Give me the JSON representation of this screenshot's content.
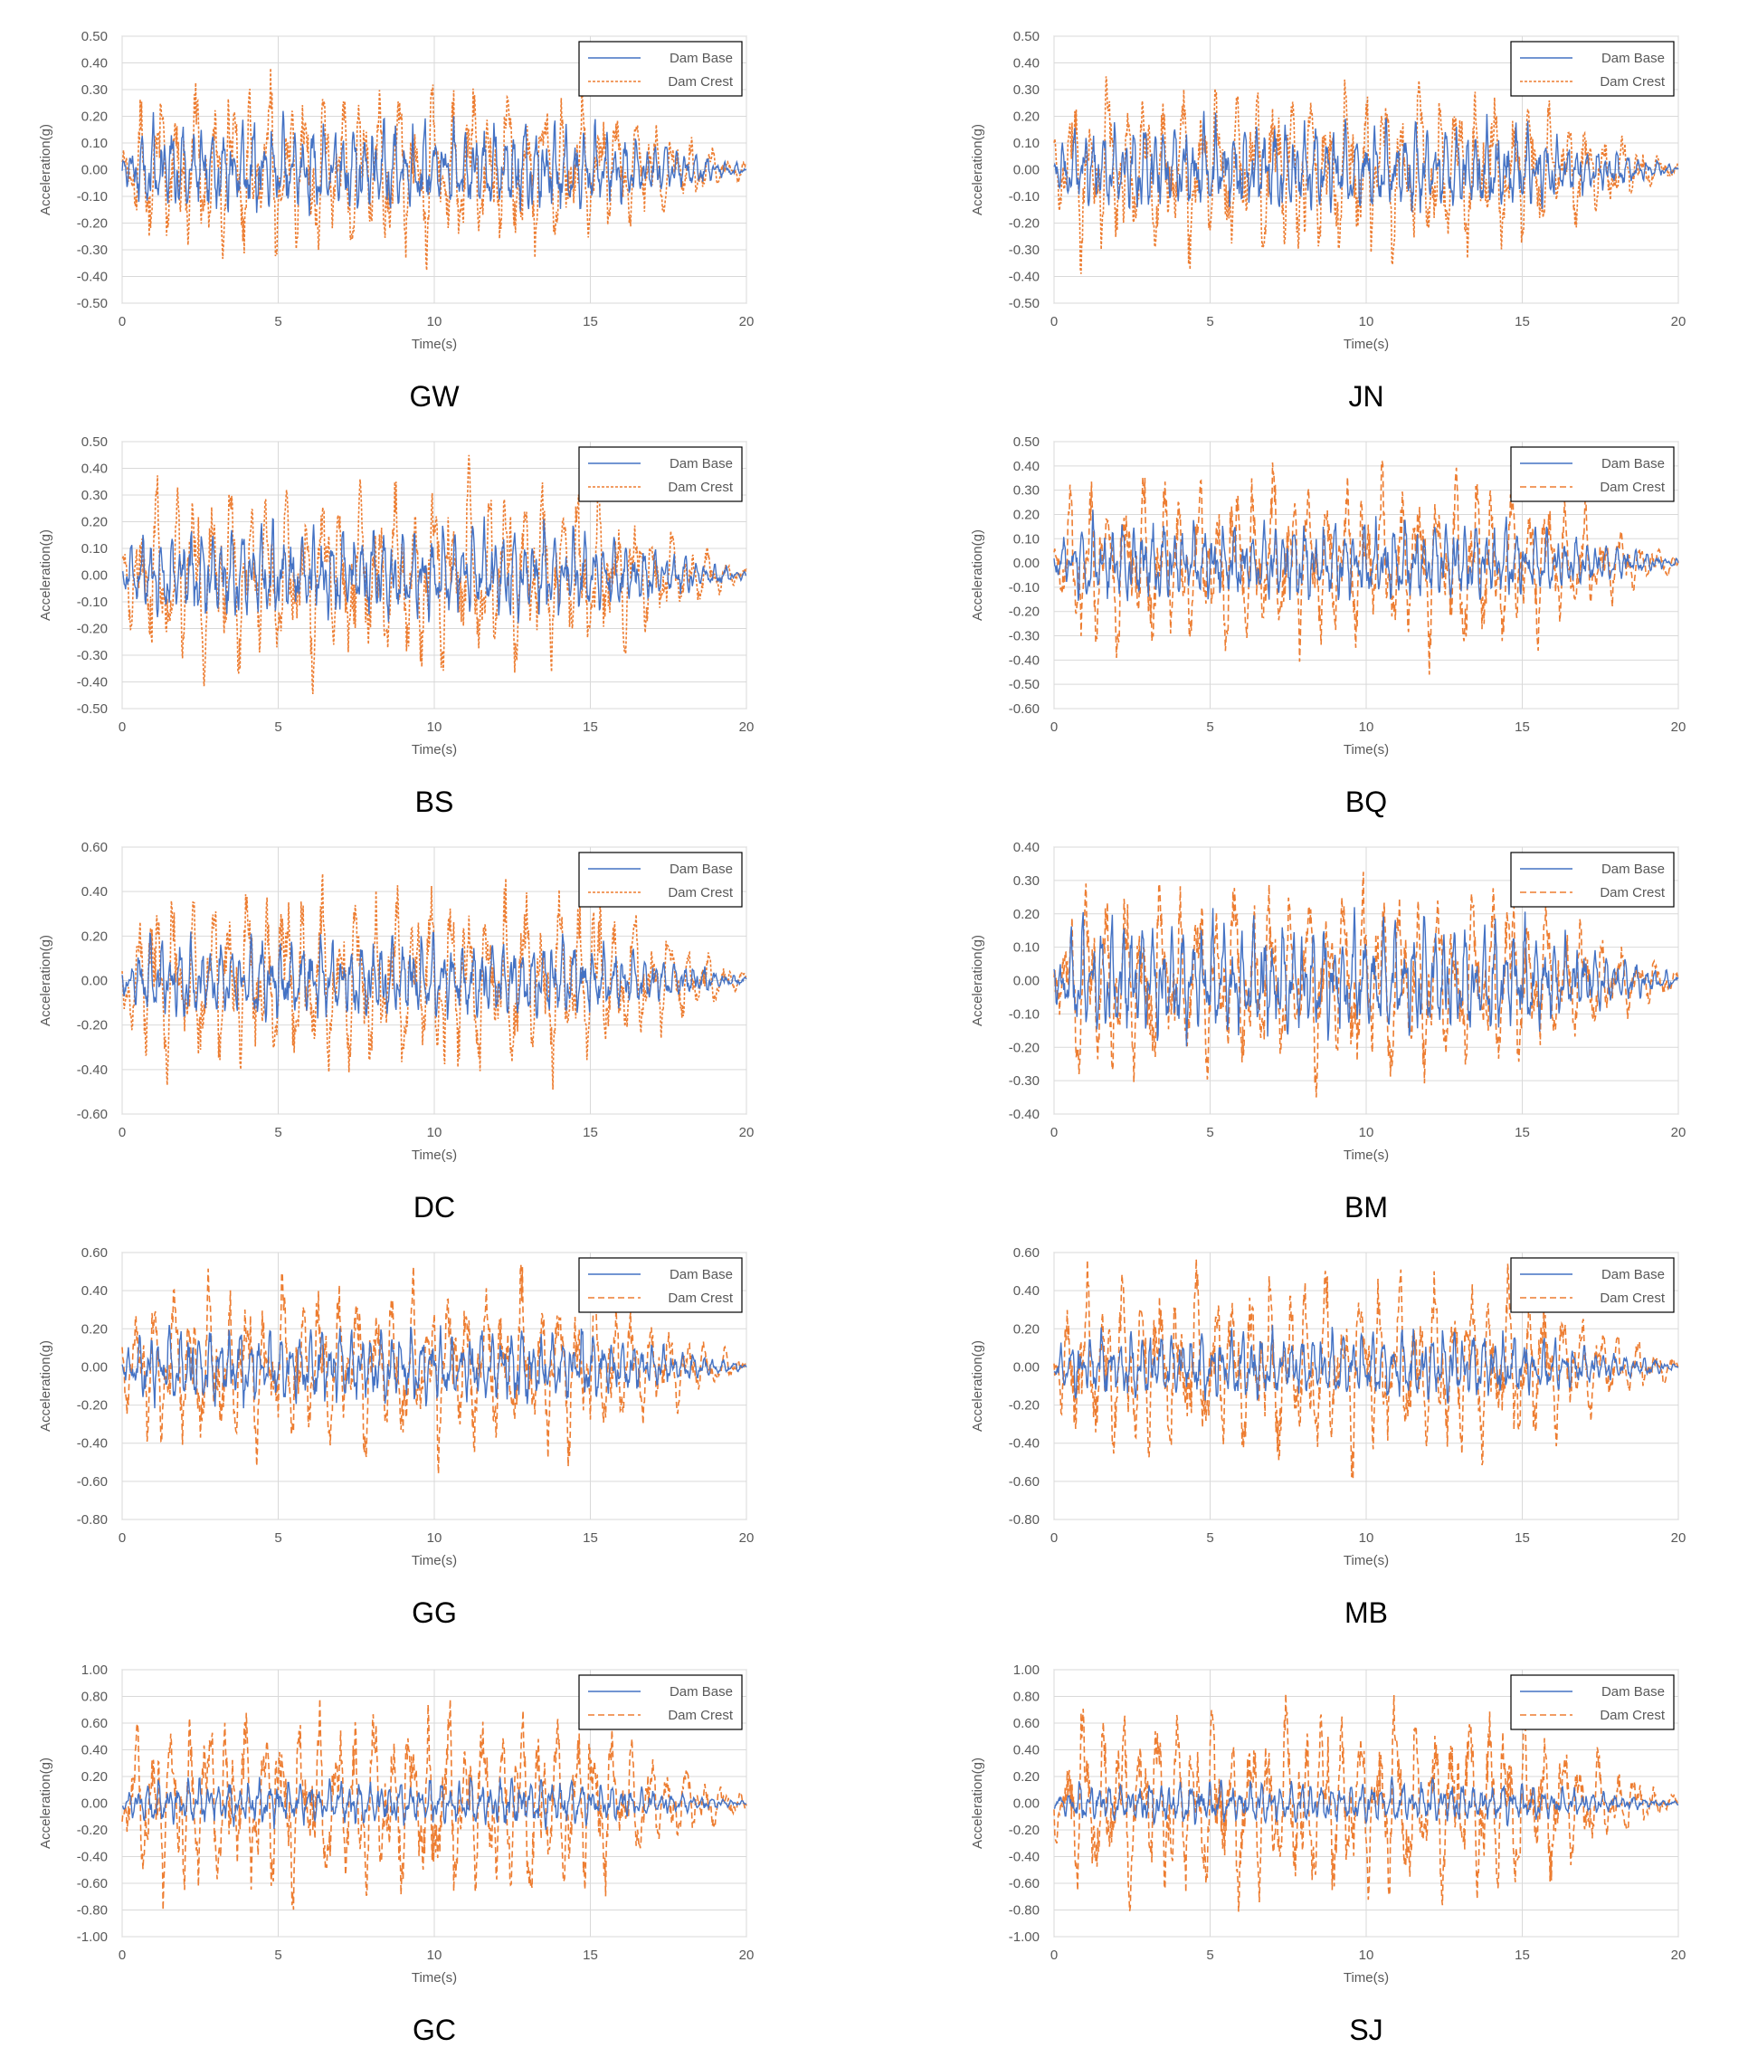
{
  "colors": {
    "base": "#4472C4",
    "crest": "#ED7D31",
    "grid": "#d9d9d9",
    "axis": "#bfbfbf",
    "text": "#595959"
  },
  "chart_data": [
    {
      "id": "GW",
      "type": "line",
      "caption": "GW",
      "xlabel": "Time(s)",
      "ylabel": "Acceleration(g)",
      "xlim": [
        0,
        20
      ],
      "xticks": [
        "0",
        "5",
        "10",
        "15",
        "20"
      ],
      "ylim": [
        -0.5,
        0.5
      ],
      "yticks": [
        "0.50",
        "0.40",
        "0.30",
        "0.20",
        "0.10",
        "0.00",
        "-0.10",
        "-0.20",
        "-0.30",
        "-0.40",
        "-0.50"
      ],
      "crest_dash": "dot",
      "series": [
        {
          "name": "Dam Base",
          "peak": 0.22
        },
        {
          "name": "Dam Crest",
          "peak": 0.38
        }
      ]
    },
    {
      "id": "JN",
      "type": "line",
      "caption": "JN",
      "xlabel": "Time(s)",
      "ylabel": "Acceleration(g)",
      "xlim": [
        0,
        20
      ],
      "xticks": [
        "0",
        "5",
        "10",
        "15",
        "20"
      ],
      "ylim": [
        -0.5,
        0.5
      ],
      "yticks": [
        "0.50",
        "0.40",
        "0.30",
        "0.20",
        "0.10",
        "0.00",
        "-0.10",
        "-0.20",
        "-0.30",
        "-0.40",
        "-0.50"
      ],
      "crest_dash": "dot",
      "series": [
        {
          "name": "Dam Base",
          "peak": 0.22
        },
        {
          "name": "Dam Crest",
          "peak": 0.39
        }
      ]
    },
    {
      "id": "BS",
      "type": "line",
      "caption": "BS",
      "xlabel": "Time(s)",
      "ylabel": "Acceleration(g)",
      "xlim": [
        0,
        20
      ],
      "xticks": [
        "0",
        "5",
        "10",
        "15",
        "20"
      ],
      "ylim": [
        -0.5,
        0.5
      ],
      "yticks": [
        "0.50",
        "0.40",
        "0.30",
        "0.20",
        "0.10",
        "0.00",
        "-0.10",
        "-0.20",
        "-0.30",
        "-0.40",
        "-0.50"
      ],
      "crest_dash": "dot",
      "series": [
        {
          "name": "Dam Base",
          "peak": 0.22
        },
        {
          "name": "Dam Crest",
          "peak": 0.45
        }
      ]
    },
    {
      "id": "BQ",
      "type": "line",
      "caption": "BQ",
      "xlabel": "Time(s)",
      "ylabel": "Acceleration(g)",
      "xlim": [
        0,
        20
      ],
      "xticks": [
        "0",
        "5",
        "10",
        "15",
        "20"
      ],
      "ylim": [
        -0.6,
        0.5
      ],
      "yticks": [
        "0.50",
        "0.40",
        "0.30",
        "0.20",
        "0.10",
        "0.00",
        "-0.10",
        "-0.20",
        "-0.30",
        "-0.40",
        "-0.50",
        "-0.60"
      ],
      "crest_dash": "dash",
      "series": [
        {
          "name": "Dam Base",
          "peak": 0.22
        },
        {
          "name": "Dam Crest",
          "peak": 0.46
        }
      ]
    },
    {
      "id": "DC",
      "type": "line",
      "caption": "DC",
      "xlabel": "Time(s)",
      "ylabel": "Acceleration(g)",
      "xlim": [
        0,
        20
      ],
      "xticks": [
        "0",
        "5",
        "10",
        "15",
        "20"
      ],
      "ylim": [
        -0.6,
        0.6
      ],
      "yticks": [
        "0.60",
        "0.40",
        "0.20",
        "0.00",
        "-0.20",
        "-0.40",
        "-0.60"
      ],
      "crest_dash": "dot",
      "series": [
        {
          "name": "Dam Base",
          "peak": 0.22
        },
        {
          "name": "Dam Crest",
          "peak": 0.49
        }
      ]
    },
    {
      "id": "BM",
      "type": "line",
      "caption": "BM",
      "xlabel": "Time(s)",
      "ylabel": "Acceleration(g)",
      "xlim": [
        0,
        20
      ],
      "xticks": [
        "0",
        "5",
        "10",
        "15",
        "20"
      ],
      "ylim": [
        -0.4,
        0.4
      ],
      "yticks": [
        "0.40",
        "0.30",
        "0.20",
        "0.10",
        "0.00",
        "-0.10",
        "-0.20",
        "-0.30",
        "-0.40"
      ],
      "crest_dash": "dash",
      "series": [
        {
          "name": "Dam Base",
          "peak": 0.22
        },
        {
          "name": "Dam Crest",
          "peak": 0.35
        }
      ]
    },
    {
      "id": "GG",
      "type": "line",
      "caption": "GG",
      "xlabel": "Time(s)",
      "ylabel": "Acceleration(g)",
      "xlim": [
        0,
        20
      ],
      "xticks": [
        "0",
        "5",
        "10",
        "15",
        "20"
      ],
      "ylim": [
        -0.8,
        0.6
      ],
      "yticks": [
        "0.60",
        "0.40",
        "0.20",
        "0.00",
        "-0.20",
        "-0.40",
        "-0.60",
        "-0.80"
      ],
      "crest_dash": "dash",
      "series": [
        {
          "name": "Dam Base",
          "peak": 0.22
        },
        {
          "name": "Dam Crest",
          "peak": 0.56
        }
      ]
    },
    {
      "id": "MB",
      "type": "line",
      "caption": "MB",
      "xlabel": "Time(s)",
      "ylabel": "Acceleration(g)",
      "xlim": [
        0,
        20
      ],
      "xticks": [
        "0",
        "5",
        "10",
        "15",
        "20"
      ],
      "ylim": [
        -0.8,
        0.6
      ],
      "yticks": [
        "0.60",
        "0.40",
        "0.20",
        "0.00",
        "-0.20",
        "-0.40",
        "-0.60",
        "-0.80"
      ],
      "crest_dash": "dash",
      "series": [
        {
          "name": "Dam Base",
          "peak": 0.22
        },
        {
          "name": "Dam Crest",
          "peak": 0.59
        }
      ]
    },
    {
      "id": "GC",
      "type": "line",
      "caption": "GC",
      "xlabel": "Time(s)",
      "ylabel": "Acceleration(g)",
      "xlim": [
        0,
        20
      ],
      "xticks": [
        "0",
        "5",
        "10",
        "15",
        "20"
      ],
      "ylim": [
        -1.0,
        1.0
      ],
      "yticks": [
        "1.00",
        "0.80",
        "0.60",
        "0.40",
        "0.20",
        "0.00",
        "-0.20",
        "-0.40",
        "-0.60",
        "-0.80",
        "-1.00"
      ],
      "crest_dash": "dash",
      "series": [
        {
          "name": "Dam Base",
          "peak": 0.2
        },
        {
          "name": "Dam Crest",
          "peak": 0.8
        }
      ]
    },
    {
      "id": "SJ",
      "type": "line",
      "caption": "SJ",
      "xlabel": "Time(s)",
      "ylabel": "Acceleration(g)",
      "xlim": [
        0,
        20
      ],
      "xticks": [
        "0",
        "5",
        "10",
        "15",
        "20"
      ],
      "ylim": [
        -1.0,
        1.0
      ],
      "yticks": [
        "1.00",
        "0.80",
        "0.60",
        "0.40",
        "0.20",
        "0.00",
        "-0.20",
        "-0.40",
        "-0.60",
        "-0.80",
        "-1.00"
      ],
      "crest_dash": "dash",
      "series": [
        {
          "name": "Dam Base",
          "peak": 0.2
        },
        {
          "name": "Dam Crest",
          "peak": 0.82
        }
      ]
    }
  ]
}
